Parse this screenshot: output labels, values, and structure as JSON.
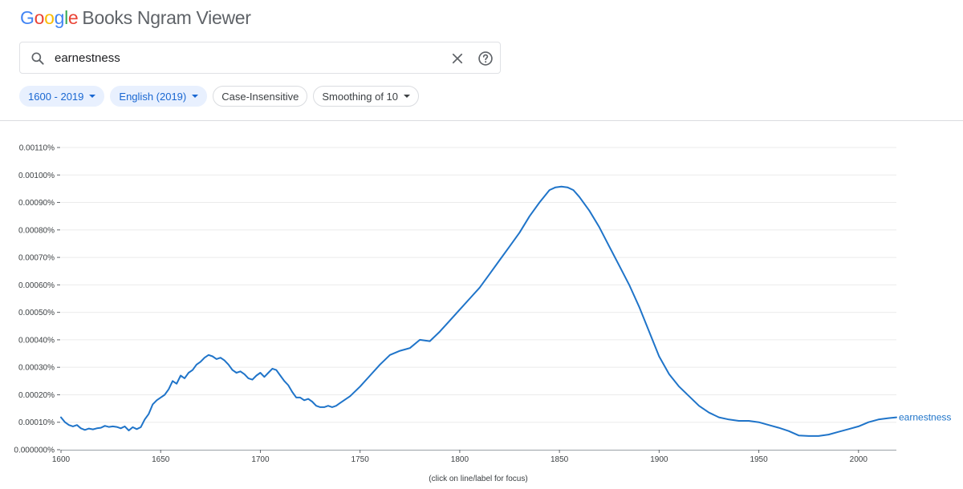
{
  "app": {
    "logo_letters": [
      "G",
      "o",
      "o",
      "g",
      "l",
      "e"
    ],
    "logo_colors": [
      "#4285F4",
      "#EA4335",
      "#FBBC05",
      "#4285F4",
      "#34A853",
      "#EA4335"
    ],
    "title": "Books Ngram Viewer"
  },
  "search": {
    "value": "earnestness",
    "icons": [
      "search-icon",
      "close-icon",
      "help-icon"
    ]
  },
  "filters": {
    "year_range": "1600 - 2019",
    "corpus": "English (2019)",
    "case": "Case-Insensitive",
    "smoothing": "Smoothing of 10"
  },
  "chart_note": "(click on line/label for focus)",
  "colors": {
    "accent": "#1a73e8",
    "chip_bg": "#e8f0fe",
    "line": "#1f74c9"
  },
  "chart_data": {
    "type": "line",
    "title": "",
    "xlabel": "",
    "ylabel": "",
    "xlim": [
      1600,
      2019
    ],
    "ylim": [
      0,
      0.0011
    ],
    "grid": true,
    "x_ticks": [
      "1600",
      "1650",
      "1700",
      "1750",
      "1800",
      "1850",
      "1900",
      "1950",
      "2000"
    ],
    "y_ticks": [
      "0.000000%",
      "0.00010%",
      "0.00020%",
      "0.00030%",
      "0.00040%",
      "0.00050%",
      "0.00060%",
      "0.00070%",
      "0.00080%",
      "0.00090%",
      "0.00100%",
      "0.00110%"
    ],
    "series": [
      {
        "name": "earnestness",
        "x": [
          1600,
          1602,
          1604,
          1606,
          1608,
          1610,
          1612,
          1614,
          1616,
          1618,
          1620,
          1622,
          1624,
          1626,
          1628,
          1630,
          1632,
          1634,
          1636,
          1638,
          1640,
          1642,
          1644,
          1646,
          1648,
          1650,
          1652,
          1654,
          1656,
          1658,
          1660,
          1662,
          1664,
          1666,
          1668,
          1670,
          1672,
          1674,
          1676,
          1678,
          1680,
          1682,
          1684,
          1686,
          1688,
          1690,
          1692,
          1694,
          1696,
          1698,
          1700,
          1702,
          1704,
          1706,
          1708,
          1710,
          1712,
          1714,
          1716,
          1718,
          1720,
          1722,
          1724,
          1726,
          1728,
          1730,
          1732,
          1734,
          1736,
          1738,
          1740,
          1745,
          1750,
          1755,
          1760,
          1765,
          1770,
          1775,
          1780,
          1785,
          1790,
          1795,
          1800,
          1805,
          1810,
          1815,
          1820,
          1825,
          1830,
          1835,
          1840,
          1845,
          1848,
          1851,
          1854,
          1857,
          1860,
          1865,
          1870,
          1875,
          1880,
          1885,
          1890,
          1895,
          1900,
          1905,
          1910,
          1915,
          1920,
          1925,
          1930,
          1935,
          1940,
          1945,
          1950,
          1955,
          1960,
          1965,
          1970,
          1975,
          1980,
          1985,
          1990,
          1995,
          2000,
          2005,
          2010,
          2015,
          2019
        ],
        "values": [
          0.000118,
          0.0001,
          9e-05,
          8.5e-05,
          9e-05,
          7.8e-05,
          7.2e-05,
          7.7e-05,
          7.4e-05,
          7.8e-05,
          8e-05,
          8.7e-05,
          8.3e-05,
          8.5e-05,
          8.3e-05,
          7.8e-05,
          8.5e-05,
          7e-05,
          8.2e-05,
          7.5e-05,
          8.2e-05,
          0.00011,
          0.00013,
          0.000165,
          0.00018,
          0.00019,
          0.0002,
          0.00022,
          0.00025,
          0.00024,
          0.00027,
          0.00026,
          0.00028,
          0.00029,
          0.00031,
          0.00032,
          0.000335,
          0.000345,
          0.00034,
          0.00033,
          0.000335,
          0.000325,
          0.00031,
          0.00029,
          0.00028,
          0.000285,
          0.000275,
          0.00026,
          0.000255,
          0.00027,
          0.00028,
          0.000265,
          0.00028,
          0.000295,
          0.00029,
          0.00027,
          0.00025,
          0.000235,
          0.00021,
          0.00019,
          0.00019,
          0.00018,
          0.000185,
          0.000175,
          0.00016,
          0.000155,
          0.000155,
          0.00016,
          0.000155,
          0.00016,
          0.00017,
          0.000195,
          0.00023,
          0.00027,
          0.00031,
          0.000345,
          0.00036,
          0.00037,
          0.0004,
          0.000395,
          0.00043,
          0.00047,
          0.00051,
          0.00055,
          0.00059,
          0.00064,
          0.00069,
          0.00074,
          0.00079,
          0.00085,
          0.0009,
          0.000945,
          0.000955,
          0.000958,
          0.000955,
          0.000945,
          0.00092,
          0.00087,
          0.00081,
          0.00074,
          0.00067,
          0.0006,
          0.00052,
          0.00043,
          0.00034,
          0.000275,
          0.00023,
          0.000195,
          0.00016,
          0.000135,
          0.000118,
          0.00011,
          0.000105,
          0.000105,
          0.0001,
          9e-05,
          8e-05,
          6.8e-05,
          5.2e-05,
          5e-05,
          5e-05,
          5.5e-05,
          6.5e-05,
          7.5e-05,
          8.5e-05,
          0.0001,
          0.00011,
          0.000115,
          0.000118
        ]
      }
    ]
  }
}
